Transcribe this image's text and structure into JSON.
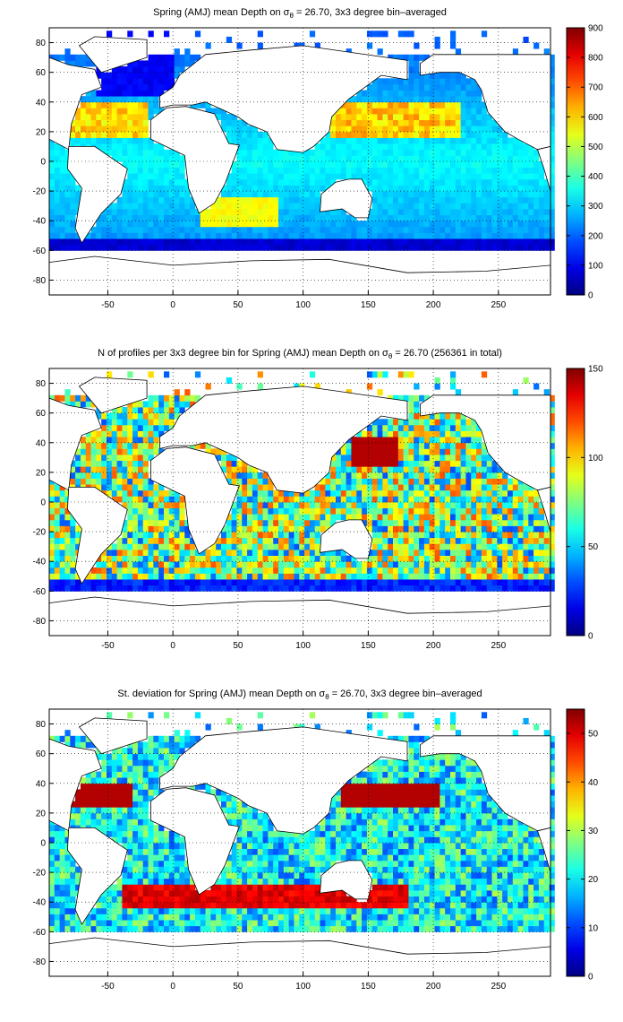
{
  "chart_data": [
    {
      "type": "heatmap",
      "title": "Spring (AMJ) mean Depth on σθ = 26.70, 3x3 degree bin–averaged",
      "title_parts": {
        "pre": "Spring (AMJ) mean Depth on σ",
        "sub": "θ",
        "post": " = 26.70, 3x3 degree bin–averaged"
      },
      "xlim": [
        -95,
        290
      ],
      "ylim": [
        -90,
        90
      ],
      "xticks": [
        -50,
        0,
        50,
        100,
        150,
        200,
        250
      ],
      "yticks": [
        -80,
        -60,
        -40,
        -20,
        0,
        20,
        40,
        60,
        80
      ],
      "colorbar": {
        "range": [
          0,
          900
        ],
        "ticks": [
          0,
          100,
          200,
          300,
          400,
          500,
          600,
          700,
          800,
          900
        ]
      },
      "colormap": "jet",
      "grid": true
    },
    {
      "type": "heatmap",
      "title": "N of profiles per 3x3 degree bin for Spring (AMJ) mean Depth on σθ = 26.70 (256361 in total)",
      "title_parts": {
        "pre": "N of profiles per 3x3 degree bin for Spring (AMJ) mean Depth on σ",
        "sub": "θ",
        "post": " = 26.70 (256361 in total)"
      },
      "xlim": [
        -95,
        290
      ],
      "ylim": [
        -90,
        90
      ],
      "xticks": [
        -50,
        0,
        50,
        100,
        150,
        200,
        250
      ],
      "yticks": [
        -80,
        -60,
        -40,
        -20,
        0,
        20,
        40,
        60,
        80
      ],
      "colorbar": {
        "range": [
          0,
          150
        ],
        "ticks": [
          0,
          50,
          100,
          150
        ]
      },
      "colormap": "jet",
      "grid": true
    },
    {
      "type": "heatmap",
      "title": "St. deviation for Spring (AMJ) mean Depth on σθ = 26.70, 3x3 degree bin–averaged",
      "title_parts": {
        "pre": "St. deviation for Spring (AMJ) mean Depth on σ",
        "sub": "θ",
        "post": " = 26.70, 3x3 degree bin–averaged"
      },
      "xlim": [
        -95,
        290
      ],
      "ylim": [
        -90,
        90
      ],
      "xticks": [
        -50,
        0,
        50,
        100,
        150,
        200,
        250
      ],
      "yticks": [
        -80,
        -60,
        -40,
        -20,
        0,
        20,
        40,
        60,
        80
      ],
      "colorbar": {
        "range": [
          0,
          55
        ],
        "ticks": [
          0,
          10,
          20,
          30,
          40,
          50
        ]
      },
      "colormap": "jet",
      "grid": true
    }
  ]
}
